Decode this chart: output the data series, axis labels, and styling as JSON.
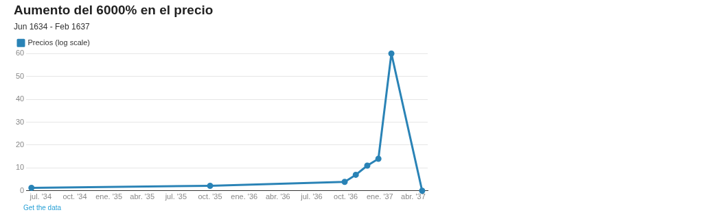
{
  "chart_data": {
    "type": "line",
    "title": "Aumento del 6000% en el precio",
    "subtitle": "Jun 1634 - Feb 1637",
    "x": [
      "1634-06-06",
      "1635-10-01",
      "1636-09-28",
      "1636-10-28",
      "1636-11-28",
      "1636-12-28",
      "1637-02-01",
      "1637-04-25"
    ],
    "series": [
      {
        "name": "Precios (log scale)",
        "color": "#2a83b6",
        "values": [
          1.3,
          2.2,
          3.9,
          7,
          11,
          14,
          60,
          0
        ]
      }
    ],
    "xlim": [
      "1634-05-23",
      "1637-05-10"
    ],
    "xticks": [
      {
        "value": "1634-07-01",
        "label": "jul. '34"
      },
      {
        "value": "1634-10-01",
        "label": "oct. '34"
      },
      {
        "value": "1635-01-01",
        "label": "ene. '35"
      },
      {
        "value": "1635-04-01",
        "label": "abr. '35"
      },
      {
        "value": "1635-07-01",
        "label": "jul. '35"
      },
      {
        "value": "1635-10-01",
        "label": "oct. '35"
      },
      {
        "value": "1636-01-01",
        "label": "ene. '36"
      },
      {
        "value": "1636-04-01",
        "label": "abr. '36"
      },
      {
        "value": "1636-07-01",
        "label": "jul. '36"
      },
      {
        "value": "1636-10-01",
        "label": "oct. '36"
      },
      {
        "value": "1637-01-01",
        "label": "ene. '37"
      },
      {
        "value": "1637-04-01",
        "label": "abr. '37"
      }
    ],
    "ylim": [
      0,
      60
    ],
    "yticks": [
      0,
      10,
      20,
      30,
      40,
      50,
      60
    ],
    "grid": "y",
    "legend": "top left",
    "marker": "circle",
    "line_style": "solid",
    "annotations": [
      "Get the data"
    ]
  }
}
